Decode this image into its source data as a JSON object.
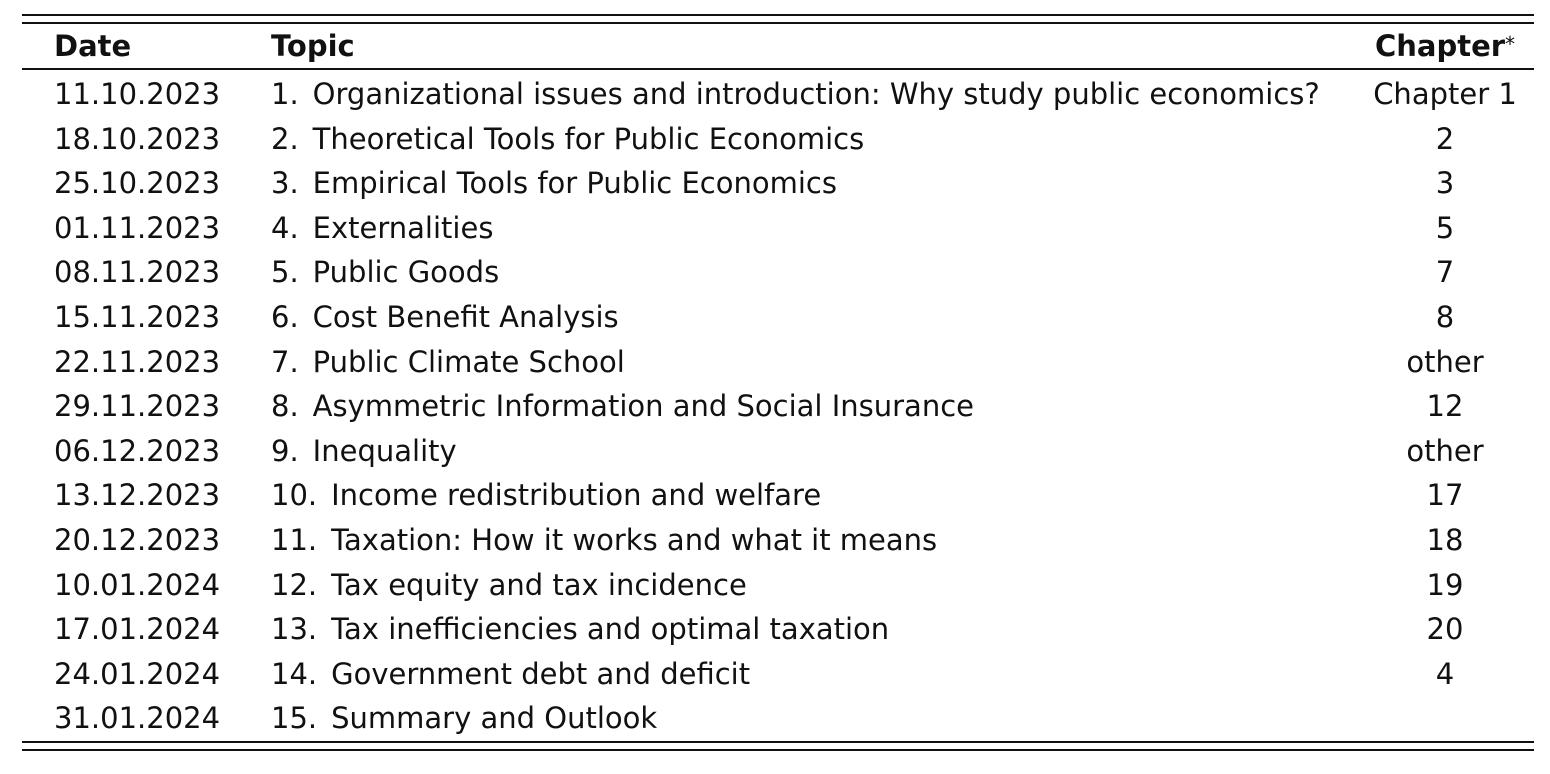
{
  "table": {
    "headers": {
      "date": "Date",
      "topic": "Topic",
      "chapter": "Chapter",
      "chapter_mark": "*"
    },
    "rows": [
      {
        "date": "11.10.2023",
        "num": "1.",
        "topic": "Organizational issues and introduction: Why study public economics?",
        "chapter": "Chapter 1"
      },
      {
        "date": "18.10.2023",
        "num": "2.",
        "topic": "Theoretical Tools for Public Economics",
        "chapter": "2"
      },
      {
        "date": "25.10.2023",
        "num": "3.",
        "topic": "Empirical Tools for Public Economics",
        "chapter": "3"
      },
      {
        "date": "01.11.2023",
        "num": "4.",
        "topic": "Externalities",
        "chapter": "5"
      },
      {
        "date": "08.11.2023",
        "num": "5.",
        "topic": "Public Goods",
        "chapter": "7"
      },
      {
        "date": "15.11.2023",
        "num": "6.",
        "topic": "Cost Benefit Analysis",
        "chapter": "8"
      },
      {
        "date": "22.11.2023",
        "num": "7.",
        "topic": "Public Climate School",
        "chapter": "other"
      },
      {
        "date": "29.11.2023",
        "num": "8.",
        "topic": "Asymmetric Information and Social Insurance",
        "chapter": "12"
      },
      {
        "date": "06.12.2023",
        "num": "9.",
        "topic": "Inequality",
        "chapter": "other"
      },
      {
        "date": "13.12.2023",
        "num": "10.",
        "topic": "Income redistribution and welfare",
        "chapter": "17"
      },
      {
        "date": "20.12.2023",
        "num": "11.",
        "topic": "Taxation: How it works and what it means",
        "chapter": "18"
      },
      {
        "date": "10.01.2024",
        "num": "12.",
        "topic": "Tax equity and tax incidence",
        "chapter": "19"
      },
      {
        "date": "17.01.2024",
        "num": "13.",
        "topic": "Tax inefficiencies and optimal taxation",
        "chapter": "20"
      },
      {
        "date": "24.01.2024",
        "num": "14.",
        "topic": "Government debt and deficit",
        "chapter": "4"
      },
      {
        "date": "31.01.2024",
        "num": "15.",
        "topic": "Summary and Outlook",
        "chapter": ""
      }
    ]
  }
}
